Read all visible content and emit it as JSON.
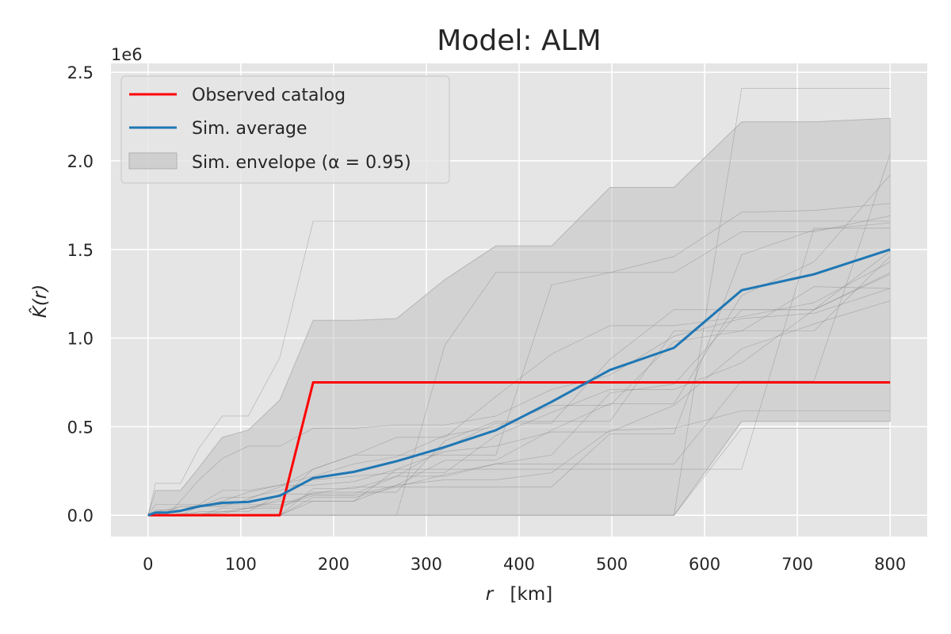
{
  "chart_data": {
    "type": "line",
    "title": "Model: ALM",
    "xlabel_var": "r",
    "xlabel_unit": "[km]",
    "ylabel": "K̂(r)",
    "y_offset_label": "1e6",
    "xlim": [
      -40,
      840
    ],
    "ylim": [
      -0.12,
      2.55
    ],
    "xticks": [
      0,
      100,
      200,
      300,
      400,
      500,
      600,
      700,
      800
    ],
    "yticks": [
      0.0,
      0.5,
      1.0,
      1.5,
      2.0,
      2.5
    ],
    "ytick_labels": [
      "0.0",
      "0.5",
      "1.0",
      "1.5",
      "2.0",
      "2.5"
    ],
    "grid": true,
    "legend_placement": "top-left",
    "legend": [
      {
        "label": "Observed catalog",
        "kind": "line",
        "color": "#ff0000"
      },
      {
        "label": "Sim. average",
        "kind": "line",
        "color": "#1f77b4"
      },
      {
        "label": "Sim. envelope (α = 0.95)",
        "kind": "patch",
        "color": "#bfbfbf"
      }
    ],
    "series": [
      {
        "id": "observed",
        "color": "#ff0000",
        "x": [
          0,
          142,
          178,
          800
        ],
        "y": [
          0,
          0,
          0.75,
          0.75
        ]
      },
      {
        "id": "average",
        "color": "#1f77b4",
        "x": [
          0,
          8,
          20,
          35,
          55,
          80,
          108,
          142,
          178,
          222,
          268,
          320,
          375,
          435,
          498,
          567,
          640,
          718,
          800
        ],
        "y": [
          0,
          0.015,
          0.015,
          0.025,
          0.05,
          0.07,
          0.075,
          0.11,
          0.21,
          0.245,
          0.305,
          0.385,
          0.48,
          0.64,
          0.82,
          0.945,
          1.27,
          1.36,
          1.5
        ]
      }
    ],
    "envelope": {
      "color": "#bfbfbf",
      "x": [
        0,
        8,
        20,
        35,
        55,
        80,
        108,
        142,
        178,
        222,
        268,
        320,
        375,
        435,
        498,
        567,
        640,
        718,
        800
      ],
      "upper": [
        0,
        0.14,
        0.14,
        0.14,
        0.27,
        0.44,
        0.48,
        0.65,
        1.1,
        1.1,
        1.11,
        1.33,
        1.52,
        1.52,
        1.85,
        1.85,
        2.22,
        2.22,
        2.24
      ],
      "lower": [
        0,
        0,
        0,
        0,
        0,
        0,
        0,
        0,
        0,
        0,
        0,
        0,
        0,
        0,
        0,
        0,
        0.53,
        0.53,
        0.53
      ]
    },
    "simulations": {
      "color": "#808080",
      "x": [
        0,
        8,
        20,
        35,
        55,
        80,
        108,
        142,
        178,
        222,
        268,
        320,
        375,
        435,
        498,
        567,
        640,
        718,
        800
      ],
      "runs": [
        [
          0,
          0.18,
          0.18,
          0.18,
          0.38,
          0.56,
          0.56,
          0.89,
          1.66,
          1.66,
          1.66,
          1.66,
          1.66,
          1.66,
          1.66,
          1.66,
          1.66,
          1.66,
          1.66
        ],
        [
          0,
          0,
          0,
          0,
          0,
          0,
          0,
          0,
          0,
          0,
          0,
          0,
          0,
          0,
          0,
          0,
          2.41,
          2.41,
          2.41
        ],
        [
          0,
          0,
          0,
          0.08,
          0.2,
          0.32,
          0.39,
          0.39,
          0.49,
          0.49,
          0.51,
          0.51,
          0.56,
          0.71,
          0.79,
          1.01,
          1.11,
          1.14,
          1.28
        ],
        [
          0,
          0,
          0,
          0,
          0,
          0,
          0,
          0,
          0.15,
          0.15,
          0.22,
          0.22,
          0.29,
          0.29,
          0.29,
          0.29,
          0.76,
          0.76,
          2.04
        ],
        [
          0,
          0,
          0,
          0,
          0,
          0,
          0,
          0,
          0,
          0,
          0,
          0.96,
          1.37,
          1.37,
          1.37,
          1.46,
          1.71,
          1.72,
          1.76
        ],
        [
          0,
          0.06,
          0.06,
          0.06,
          0.06,
          0.14,
          0.14,
          0.17,
          0.17,
          0.19,
          0.26,
          0.36,
          0.39,
          0.47,
          0.47,
          0.62,
          0.94,
          1.08,
          1.21
        ],
        [
          0,
          0,
          0,
          0,
          0.05,
          0.05,
          0.09,
          0.16,
          0.26,
          0.34,
          0.44,
          0.44,
          0.67,
          0.91,
          1.07,
          1.07,
          1.12,
          1.2,
          1.43
        ],
        [
          0,
          0.02,
          0.03,
          0.05,
          0.05,
          0.08,
          0.13,
          0.17,
          0.22,
          0.29,
          0.33,
          0.45,
          0.5,
          0.62,
          0.62,
          0.98,
          1.04,
          1.29,
          1.28
        ],
        [
          0,
          0,
          0,
          0,
          0,
          0,
          0,
          0,
          0.1,
          0.1,
          0.16,
          0.23,
          0.29,
          0.34,
          0.69,
          0.74,
          1.16,
          1.16,
          1.49
        ],
        [
          0,
          0,
          0.02,
          0.05,
          0.05,
          0.1,
          0.1,
          0.14,
          0.2,
          0.22,
          0.24,
          0.24,
          0.45,
          0.58,
          0.71,
          0.71,
          0.86,
          1.16,
          1.37
        ],
        [
          0,
          0,
          0,
          0,
          0,
          0,
          0,
          0,
          0.08,
          0.08,
          0.17,
          0.2,
          0.2,
          0.24,
          0.48,
          0.49,
          0.59,
          0.59,
          0.59
        ],
        [
          0,
          0.01,
          0.01,
          0.02,
          0.05,
          0.05,
          0.05,
          0.05,
          0.11,
          0.11,
          0.17,
          0.31,
          0.31,
          0.48,
          0.63,
          0.63,
          1.24,
          1.43,
          1.92
        ],
        [
          0,
          0,
          0,
          0,
          0,
          0.04,
          0.04,
          0.09,
          0.26,
          0.34,
          0.34,
          0.34,
          0.34,
          1.3,
          1.37,
          1.37,
          1.6,
          1.6,
          1.69
        ],
        [
          0,
          0,
          0,
          0.01,
          0.01,
          0.01,
          0.04,
          0.08,
          0.08,
          0.08,
          0.26,
          0.26,
          0.26,
          0.26,
          0.26,
          0.26,
          0.26,
          1.62,
          1.62
        ],
        [
          0,
          0,
          0,
          0,
          0,
          0.02,
          0.04,
          0.04,
          0.13,
          0.13,
          0.13,
          0.42,
          0.53,
          0.53,
          0.53,
          1.04,
          1.04,
          1.04,
          1.46
        ],
        [
          0,
          0,
          0,
          0,
          0,
          0,
          0,
          0,
          0,
          0,
          0,
          0,
          0,
          0,
          0,
          0,
          0.49,
          0.49,
          0.49
        ],
        [
          0,
          0.03,
          0.03,
          0.03,
          0.06,
          0.06,
          0.06,
          0.06,
          0.12,
          0.12,
          0.22,
          0.38,
          0.52,
          0.52,
          0.88,
          1.16,
          1.16,
          1.16,
          1.36
        ],
        [
          0,
          0,
          0,
          0,
          0.02,
          0.02,
          0.02,
          0.12,
          0.12,
          0.16,
          0.16,
          0.16,
          0.16,
          0.16,
          0.46,
          0.46,
          1.47,
          1.61,
          1.65
        ]
      ]
    }
  }
}
